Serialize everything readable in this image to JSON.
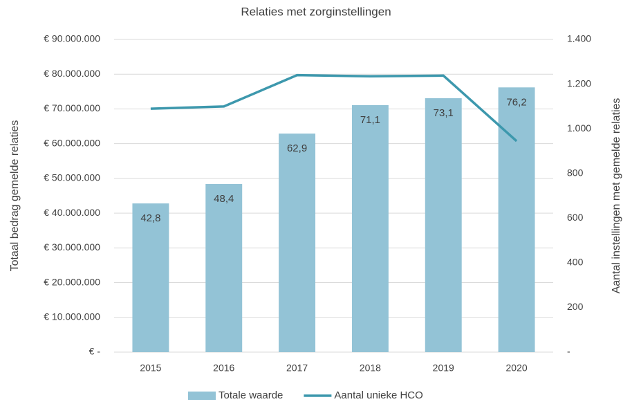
{
  "chart_data": {
    "type": "bar",
    "title": "Relaties met zorginstellingen",
    "y_label": "Totaal bedrag gemelde relaties",
    "y2_label": "Aantal instellingen met gemelde relaties",
    "categories": [
      "2015",
      "2016",
      "2017",
      "2018",
      "2019",
      "2020"
    ],
    "series": [
      {
        "name": "Totale waarde",
        "type": "bar",
        "color": "#93c3d6",
        "values": [
          42800000,
          48400000,
          62900000,
          71100000,
          73100000,
          76200000
        ],
        "value_labels": [
          "42,8",
          "48,4",
          "62,9",
          "71,1",
          "73,1",
          "76,2"
        ]
      },
      {
        "name": "Aantal unieke HCO",
        "type": "line",
        "axis": "y2",
        "color": "#3d98ad",
        "values": [
          1090,
          1100,
          1240,
          1235,
          1238,
          945
        ]
      }
    ],
    "ylim": [
      0,
      90000000
    ],
    "yticks": [
      {
        "value": 0,
        "label": "€ -"
      },
      {
        "value": 10000000,
        "label": "€ 10.000.000"
      },
      {
        "value": 20000000,
        "label": "€ 20.000.000"
      },
      {
        "value": 30000000,
        "label": "€ 30.000.000"
      },
      {
        "value": 40000000,
        "label": "€ 40.000.000"
      },
      {
        "value": 50000000,
        "label": "€ 50.000.000"
      },
      {
        "value": 60000000,
        "label": "€ 60.000.000"
      },
      {
        "value": 70000000,
        "label": "€ 70.000.000"
      },
      {
        "value": 80000000,
        "label": "€ 80.000.000"
      },
      {
        "value": 90000000,
        "label": "€ 90.000.000"
      }
    ],
    "y2lim": [
      0,
      1400
    ],
    "y2ticks": [
      {
        "value": 0,
        "label": "-"
      },
      200,
      400,
      600,
      800,
      {
        "value": 1000,
        "label": "1.000"
      },
      {
        "value": 1200,
        "label": "1.200"
      },
      {
        "value": 1400,
        "label": "1.400"
      }
    ],
    "grid": true,
    "legend": "bottom"
  }
}
